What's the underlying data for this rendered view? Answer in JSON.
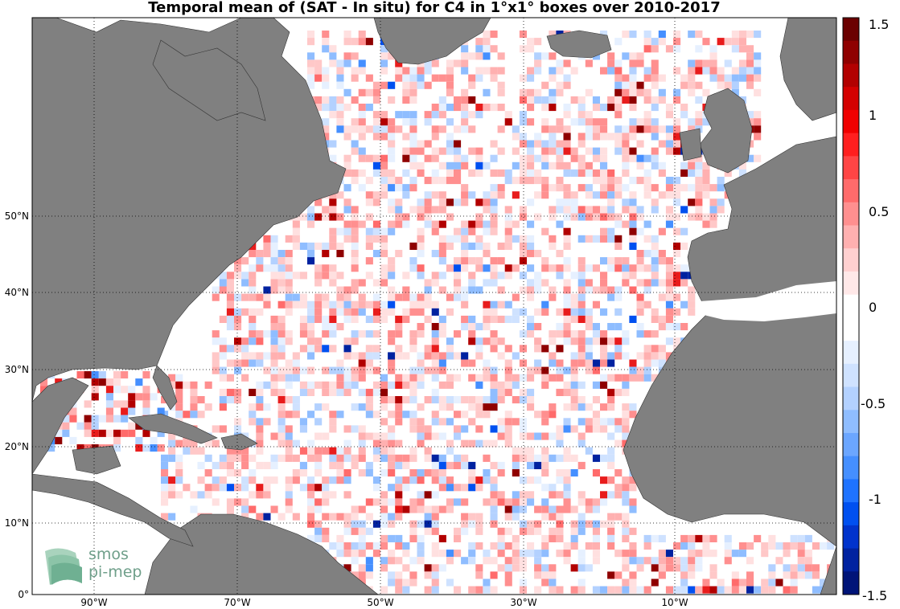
{
  "title": "Temporal mean of (SAT - In situ) for C4 in 1°x1° boxes over 2010-2017",
  "colorbar": {
    "min": -1.5,
    "max": 1.5,
    "tick_labels": [
      "1.5",
      "1",
      "0.5",
      "0",
      "-0.5",
      "-1",
      "-1.5"
    ],
    "colors_top_to_bottom": [
      "#6b0000",
      "#8f0000",
      "#b20000",
      "#d40000",
      "#f00000",
      "#ff1f1f",
      "#ff4545",
      "#ff6b6b",
      "#ff8f8f",
      "#ffb0b0",
      "#ffd0d0",
      "#ffe8e8",
      "#ffffff",
      "#ffffff",
      "#e6f0ff",
      "#cfe2ff",
      "#b3d1ff",
      "#8fbdff",
      "#6ba6ff",
      "#458fff",
      "#1f73ff",
      "#0050f0",
      "#0033cc",
      "#0022a0",
      "#001478"
    ]
  },
  "axes": {
    "lat_labels": [
      "50°N",
      "40°N",
      "30°N",
      "20°N",
      "10°N",
      "0°"
    ],
    "lon_labels": [
      "90°W",
      "70°W",
      "50°W",
      "30°W",
      "10°W"
    ]
  },
  "logo": {
    "line1": "smos",
    "line2": "pi-mep"
  },
  "colors": {
    "land": "#808080",
    "grid": "#000000",
    "ocean": "#ffffff"
  }
}
